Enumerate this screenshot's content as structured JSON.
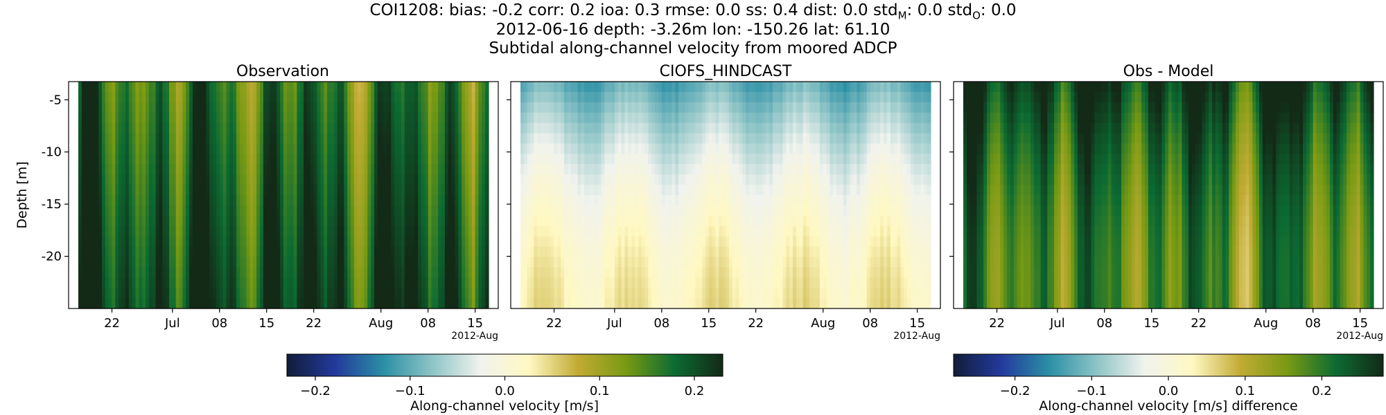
{
  "header": {
    "metrics_line": "COI1208: bias: -0.2  corr: 0.2  ioa: 0.3  rmse: 0.0  ss: 0.4  dist: 0.0  std",
    "std_m_sub": "M",
    "std_m_value": ": 0.0  std",
    "std_o_sub": "O",
    "std_o_value": ": 0.0",
    "info_line": "2012-06-16 depth: -3.26m lon: -150.26 lat: 61.10",
    "description": "Subtidal along-channel velocity from moored ADCP"
  },
  "chart_data": [
    {
      "type": "heatmap",
      "title": "Observation",
      "ylabel": "Depth [m]",
      "xlabel": "",
      "x_tick_labels": [
        "22",
        "Jul",
        "08",
        "15",
        "22",
        "Aug",
        "08",
        "15"
      ],
      "x_tick_dates": [
        "2012-06-22",
        "2012-07-01",
        "2012-07-08",
        "2012-07-15",
        "2012-07-22",
        "2012-08-01",
        "2012-08-08",
        "2012-08-15"
      ],
      "x_offset_label": "2012-Aug",
      "xlim": [
        "2012-06-17",
        "2012-08-17"
      ],
      "y_tick_labels": [
        "-5",
        "-10",
        "-15",
        "-20"
      ],
      "y_ticks": [
        -5,
        -10,
        -15,
        -20
      ],
      "ylim": [
        -25,
        -3.26
      ],
      "colorbar": "velocity",
      "description_of_values": "Positive along-channel velocity 0.08-0.22 m/s everywhere, banded in time, strongest near bottom",
      "grid": false
    },
    {
      "type": "heatmap",
      "title": "CIOFS_HINDCAST",
      "ylabel": "",
      "x_tick_labels": [
        "22",
        "Jul",
        "08",
        "15",
        "22",
        "Aug",
        "08",
        "15"
      ],
      "x_offset_label": "2012-Aug",
      "xlim": [
        "2012-06-17",
        "2012-08-17"
      ],
      "ylim": [
        -25,
        -3.26
      ],
      "colorbar": "velocity",
      "description_of_values": "Near-zero velocity; negative (-0.05 to -0.12 m/s) near surface, slightly positive near bottom",
      "grid": false
    },
    {
      "type": "heatmap",
      "title": "Obs - Model",
      "ylabel": "",
      "x_tick_labels": [
        "22",
        "Jul",
        "08",
        "15",
        "22",
        "Aug",
        "08",
        "15"
      ],
      "x_offset_label": "2012-Aug",
      "xlim": [
        "2012-06-17",
        "2012-08-17"
      ],
      "ylim": [
        -25,
        -3.26
      ],
      "colorbar": "difference",
      "description_of_values": "Positive difference 0.08-0.26 m/s throughout",
      "grid": false
    }
  ],
  "colorbars": {
    "velocity": {
      "label": "Along-channel velocity [m/s]",
      "range": [
        -0.23,
        0.23
      ],
      "ticks": [
        -0.2,
        -0.1,
        0.0,
        0.1,
        0.2
      ],
      "tick_labels": [
        "−0.2",
        "−0.1",
        "0.0",
        "0.1",
        "0.2"
      ],
      "colormap": "cmocean delta"
    },
    "difference": {
      "label": "Along-channel velocity [m/s] difference",
      "range": [
        -0.28,
        0.28
      ],
      "ticks": [
        -0.2,
        -0.1,
        0.0,
        0.1,
        0.2
      ],
      "tick_labels": [
        "−0.2",
        "−0.1",
        "0.0",
        "0.1",
        "0.2"
      ],
      "colormap": "cmocean delta"
    }
  },
  "colors": {
    "cmap_stops": [
      "#111d39",
      "#233a9c",
      "#2b8fa5",
      "#8dc4c6",
      "#f1f3ee",
      "#fff8c2",
      "#c2ab34",
      "#789a13",
      "#0c6b32",
      "#132a17"
    ]
  }
}
